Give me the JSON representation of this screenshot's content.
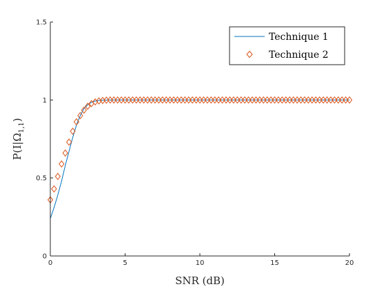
{
  "chart_data": {
    "type": "line",
    "xlabel": "SNR  (dB)",
    "ylabel": "P(I|Ω",
    "ylabel_sub": "1,1",
    "ylabel_close": ")",
    "xlim": [
      0,
      20
    ],
    "ylim": [
      0,
      1.5
    ],
    "x_ticks": [
      "0",
      "5",
      "10",
      "15",
      "20"
    ],
    "y_ticks": [
      "0",
      "0.5",
      "1",
      "1.5"
    ],
    "grid": false,
    "legend_position": "top-right",
    "series": [
      {
        "name": "Technique 1",
        "style": "line",
        "color": "#0072BD",
        "x": [
          0,
          0.25,
          0.5,
          0.75,
          1,
          1.25,
          1.5,
          1.75,
          2,
          2.25,
          2.5,
          2.75,
          3,
          3.25,
          3.5,
          4,
          5,
          10,
          15,
          20
        ],
        "y": [
          0.24,
          0.31,
          0.39,
          0.48,
          0.58,
          0.67,
          0.76,
          0.84,
          0.9,
          0.945,
          0.97,
          0.985,
          0.993,
          0.997,
          0.999,
          1,
          1,
          1,
          1,
          1
        ]
      },
      {
        "name": "Technique 2",
        "style": "marker",
        "color": "#D95319",
        "x": [
          0,
          0.25,
          0.5,
          0.75,
          1,
          1.25,
          1.5,
          1.75,
          2,
          2.25,
          2.5,
          2.75,
          3,
          3.25,
          3.5,
          3.75,
          4,
          4.25,
          4.5,
          4.75,
          5,
          5.25,
          5.5,
          5.75,
          6,
          6.25,
          6.5,
          6.75,
          7,
          7.25,
          7.5,
          7.75,
          8,
          8.25,
          8.5,
          8.75,
          9,
          9.25,
          9.5,
          9.75,
          10,
          10.25,
          10.5,
          10.75,
          11,
          11.25,
          11.5,
          11.75,
          12,
          12.25,
          12.5,
          12.75,
          13,
          13.25,
          13.5,
          13.75,
          14,
          14.25,
          14.5,
          14.75,
          15,
          15.25,
          15.5,
          15.75,
          16,
          16.25,
          16.5,
          16.75,
          17,
          17.25,
          17.5,
          17.75,
          18,
          18.25,
          18.5,
          18.75,
          19,
          19.25,
          19.5,
          19.75,
          20
        ],
        "y": [
          0.36,
          0.43,
          0.51,
          0.59,
          0.66,
          0.73,
          0.8,
          0.86,
          0.9,
          0.935,
          0.96,
          0.977,
          0.988,
          0.994,
          0.997,
          0.999,
          1,
          1,
          1,
          1,
          1,
          1,
          1,
          1,
          1,
          1,
          1,
          1,
          1,
          1,
          1,
          1,
          1,
          1,
          1,
          1,
          1,
          1,
          1,
          1,
          1,
          1,
          1,
          1,
          1,
          1,
          1,
          1,
          1,
          1,
          1,
          1,
          1,
          1,
          1,
          1,
          1,
          1,
          1,
          1,
          1,
          1,
          1,
          1,
          1,
          1,
          1,
          1,
          1,
          1,
          1,
          1,
          1,
          1,
          1,
          1,
          1,
          1,
          1,
          1,
          1
        ]
      }
    ]
  }
}
